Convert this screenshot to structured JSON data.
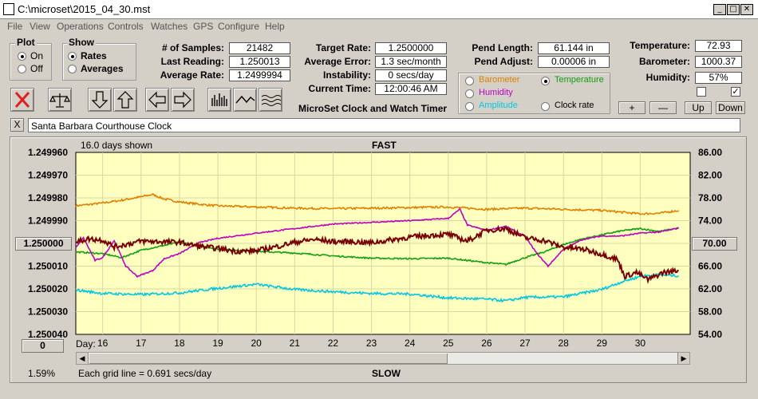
{
  "window": {
    "title": "C:\\microset\\2015_04_30.mst"
  },
  "menu": [
    "File",
    "View",
    "Operations",
    "Controls",
    "Watches",
    "GPS",
    "Configure",
    "Help"
  ],
  "plot_group": {
    "title": "Plot",
    "options": [
      "On",
      "Off"
    ],
    "selected": "On"
  },
  "show_group": {
    "title": "Show",
    "options": [
      "Rates",
      "Averages"
    ],
    "selected": "Rates"
  },
  "stats": {
    "samples_label": "# of Samples:",
    "samples": "21482",
    "last_label": "Last Reading:",
    "last": "1.250013",
    "avg_label": "Average Rate:",
    "avg": "1.2499994",
    "target_label": "Target Rate:",
    "target": "1.2500000",
    "err_label": "Average Error:",
    "err": "1.3 sec/month",
    "instab_label": "Instability:",
    "instab": "0 secs/day",
    "time_label": "Current Time:",
    "time": "12:00:46 AM",
    "pendlen_label": "Pend Length:",
    "pendlen": "61.144 in",
    "pendadj_label": "Pend Adjust:",
    "pendadj": "0.00006 in",
    "temp_label": "Temperature:",
    "temp": "72.93",
    "baro_label": "Barometer:",
    "baro": "1000.37",
    "hum_label": "Humidity:",
    "hum": "57%"
  },
  "app_name": "MicroSet Clock and Watch Timer",
  "sensor_options": [
    {
      "label": "Barometer",
      "color": "#e08000",
      "selected": false
    },
    {
      "label": "Temperature",
      "color": "#10a010",
      "selected": true
    },
    {
      "label": "Humidity",
      "color": "#c000c0",
      "selected": false
    },
    {
      "label": "Amplitude",
      "color": "#00c8e0",
      "selected": false
    },
    {
      "label": "Clock rate",
      "color": "#000000",
      "selected": false
    }
  ],
  "scale_buttons": [
    "+",
    "—",
    "Up",
    "Down"
  ],
  "checkbox_2": "✓",
  "clock_name": "Santa Barbara Courthouse Clock",
  "clear_label": "X",
  "chart": {
    "days_shown": "16.0 days shown",
    "top_label": "FAST",
    "bottom_label": "SLOW",
    "grid_note": "Each grid line = 0.691 secs/day",
    "pct": "1.59%",
    "left_button": "0",
    "right_button": "70.00",
    "left_center": "1.250000",
    "day_label": "Day:"
  },
  "chart_data": {
    "type": "line",
    "title": "",
    "left_ticks": [
      "1.249960",
      "1.249970",
      "1.249980",
      "1.249990",
      "1.250000",
      "1.250010",
      "1.250020",
      "1.250030",
      "1.250040"
    ],
    "right_ticks": [
      "86.00",
      "82.00",
      "78.00",
      "74.00",
      "70.00",
      "66.00",
      "62.00",
      "58.00",
      "54.00"
    ],
    "ylim_left": [
      1.24996,
      1.25004
    ],
    "ylim_right": [
      54,
      86
    ],
    "x_days": [
      "16",
      "17",
      "18",
      "19",
      "20",
      "21",
      "22",
      "23",
      "24",
      "25",
      "26",
      "27",
      "28",
      "29",
      "30"
    ],
    "xlim": [
      15.3,
      31.3
    ],
    "grid": true,
    "series": [
      {
        "color": "#e08000",
        "values": [
          [
            15.3,
            76.6
          ],
          [
            16,
            77.1
          ],
          [
            16.5,
            77.6
          ],
          [
            17,
            78.2
          ],
          [
            17.3,
            78.6
          ],
          [
            17.6,
            77.8
          ],
          [
            18,
            77.3
          ],
          [
            18.5,
            76.9
          ],
          [
            19,
            76.6
          ],
          [
            20,
            76.4
          ],
          [
            21,
            76.2
          ],
          [
            22,
            76.1
          ],
          [
            23,
            76.2
          ],
          [
            24,
            76.3
          ],
          [
            25,
            76.4
          ],
          [
            26,
            76.0
          ],
          [
            27,
            76.2
          ],
          [
            28,
            76.0
          ],
          [
            29,
            75.8
          ],
          [
            29.5,
            75.5
          ],
          [
            30,
            75.2
          ],
          [
            30.5,
            75.3
          ],
          [
            31,
            75.8
          ]
        ]
      },
      {
        "color": "#10a010",
        "values": [
          [
            15.3,
            68.5
          ],
          [
            16,
            68.2
          ],
          [
            16.5,
            67.5
          ],
          [
            17,
            68.8
          ],
          [
            17.5,
            69.5
          ],
          [
            18,
            70.2
          ],
          [
            18.5,
            69.6
          ],
          [
            19,
            69.0
          ],
          [
            20,
            68.6
          ],
          [
            21,
            68.3
          ],
          [
            22,
            67.8
          ],
          [
            23,
            67.4
          ],
          [
            24,
            67.3
          ],
          [
            25,
            67.4
          ],
          [
            25.5,
            67.0
          ],
          [
            26,
            66.6
          ],
          [
            26.5,
            66.3
          ],
          [
            27,
            67.5
          ],
          [
            27.5,
            68.5
          ],
          [
            28,
            69.8
          ],
          [
            28.5,
            70.8
          ],
          [
            29,
            71.5
          ],
          [
            29.5,
            72.2
          ],
          [
            30,
            72.6
          ],
          [
            30.5,
            72.1
          ],
          [
            31,
            72.7
          ]
        ]
      },
      {
        "color": "#c000c0",
        "values": [
          [
            15.3,
            69.2
          ],
          [
            15.5,
            71.0
          ],
          [
            15.8,
            67.0
          ],
          [
            16,
            67.5
          ],
          [
            16.3,
            70.5
          ],
          [
            16.6,
            66.0
          ],
          [
            16.9,
            64.2
          ],
          [
            17.3,
            65.2
          ],
          [
            17.6,
            67.3
          ],
          [
            18,
            68.2
          ],
          [
            18.5,
            70.1
          ],
          [
            19,
            70.9
          ],
          [
            20,
            71.8
          ],
          [
            21,
            72.6
          ],
          [
            22,
            73.4
          ],
          [
            23,
            73.7
          ],
          [
            24,
            74.0
          ],
          [
            25,
            74.4
          ],
          [
            25.3,
            76.0
          ],
          [
            25.5,
            73.2
          ],
          [
            26,
            72.3
          ],
          [
            26.5,
            73.0
          ],
          [
            27,
            71.2
          ],
          [
            27.3,
            68.3
          ],
          [
            27.6,
            66.0
          ],
          [
            28,
            69.0
          ],
          [
            28.5,
            70.7
          ],
          [
            29,
            71.3
          ],
          [
            29.5,
            71.3
          ],
          [
            30,
            71.8
          ],
          [
            30.5,
            72.0
          ],
          [
            31,
            72.7
          ]
        ]
      },
      {
        "color": "#00c8e0",
        "values": [
          [
            15.3,
            61.8
          ],
          [
            16,
            61.2
          ],
          [
            17,
            61.0
          ],
          [
            18,
            61.3
          ],
          [
            19,
            62.1
          ],
          [
            20,
            62.8
          ],
          [
            21,
            61.9
          ],
          [
            22,
            61.5
          ],
          [
            23,
            61.2
          ],
          [
            24,
            61.1
          ],
          [
            25,
            60.4
          ],
          [
            26,
            60.2
          ],
          [
            26.5,
            59.9
          ],
          [
            27,
            60.5
          ],
          [
            28,
            60.6
          ],
          [
            29,
            61.9
          ],
          [
            29.5,
            63.2
          ],
          [
            30,
            64.2
          ],
          [
            30.5,
            64.5
          ],
          [
            31,
            64.3
          ]
        ]
      },
      {
        "color": "#7a0000",
        "values": [
          [
            15.3,
            70.2
          ],
          [
            15.6,
            70.8
          ],
          [
            16,
            70.6
          ],
          [
            16.3,
            69.4
          ],
          [
            16.8,
            70.1
          ],
          [
            17,
            70.4
          ],
          [
            17.5,
            70.3
          ],
          [
            18,
            70.2
          ],
          [
            18.5,
            69.5
          ],
          [
            19,
            69.1
          ],
          [
            19.5,
            68.6
          ],
          [
            20,
            68.7
          ],
          [
            20.5,
            69.4
          ],
          [
            21,
            70.2
          ],
          [
            21.5,
            70.7
          ],
          [
            22,
            70.3
          ],
          [
            22.5,
            70.3
          ],
          [
            23,
            70.1
          ],
          [
            23.5,
            70.6
          ],
          [
            24,
            71.1
          ],
          [
            24.5,
            71.4
          ],
          [
            25,
            71.6
          ],
          [
            25.5,
            70.4
          ],
          [
            26,
            72.3
          ],
          [
            26.5,
            72.6
          ],
          [
            27,
            71.0
          ],
          [
            27.5,
            70.5
          ],
          [
            28,
            69.3
          ],
          [
            28.5,
            69.0
          ],
          [
            29,
            68.1
          ],
          [
            29.4,
            67.2
          ],
          [
            29.6,
            64.2
          ],
          [
            29.9,
            64.9
          ],
          [
            30.2,
            63.6
          ],
          [
            30.6,
            64.9
          ],
          [
            31,
            65.2
          ]
        ]
      }
    ]
  }
}
